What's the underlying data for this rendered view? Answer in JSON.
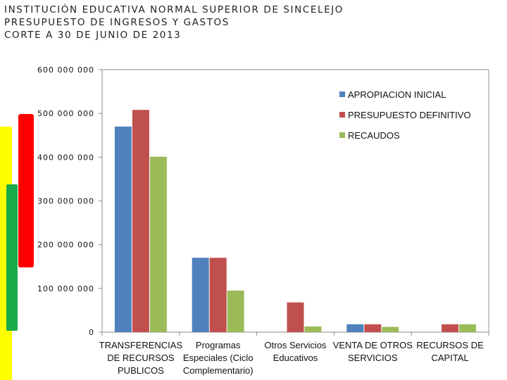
{
  "header": {
    "line1": "INSTITUCIÓN EDUCATIVA NORMAL SUPERIOR DE SINCELEJO",
    "line2": "PRESUPUESTO DE INGRESOS  Y GASTOS",
    "line3": "CORTE A 30 DE JUNIO DE 2013"
  },
  "flag_colors": {
    "yellow": "#ffff00",
    "red": "#ff0000",
    "green": "#1aab4b"
  },
  "chart_data": {
    "type": "bar",
    "title": "",
    "xlabel": "",
    "ylabel": "",
    "ylim": [
      0,
      600000000
    ],
    "yticks": [
      0,
      100000000,
      200000000,
      300000000,
      400000000,
      500000000,
      600000000
    ],
    "ytick_labels": [
      "0",
      "100 000 000",
      "200 000 000",
      "300 000 000",
      "400 000 000",
      "500 000 000",
      "600 000 000"
    ],
    "categories": [
      [
        "TRANSFERENCIAS",
        "DE RECURSOS",
        "PUBLICOS"
      ],
      [
        "Programas",
        "Especiales (Ciclo",
        "Complementario)"
      ],
      [
        "Otros Servicios",
        "Educativos"
      ],
      [
        "VENTA DE OTROS",
        "SERVICIOS"
      ],
      [
        "RECURSOS DE",
        "CAPITAL"
      ]
    ],
    "series": [
      {
        "name": "APROPIACION INICIAL",
        "color": "#4f81bd",
        "values": [
          470000000,
          170000000,
          0,
          18000000,
          0
        ]
      },
      {
        "name": "PRESUPUESTO DEFINITIVO",
        "color": "#c0504d",
        "values": [
          508000000,
          170000000,
          68000000,
          18000000,
          18000000
        ]
      },
      {
        "name": "RECAUDOS",
        "color": "#9bbb59",
        "values": [
          401000000,
          95000000,
          13000000,
          12000000,
          18000000
        ]
      }
    ],
    "legend_position": "top-right",
    "grid": false
  }
}
